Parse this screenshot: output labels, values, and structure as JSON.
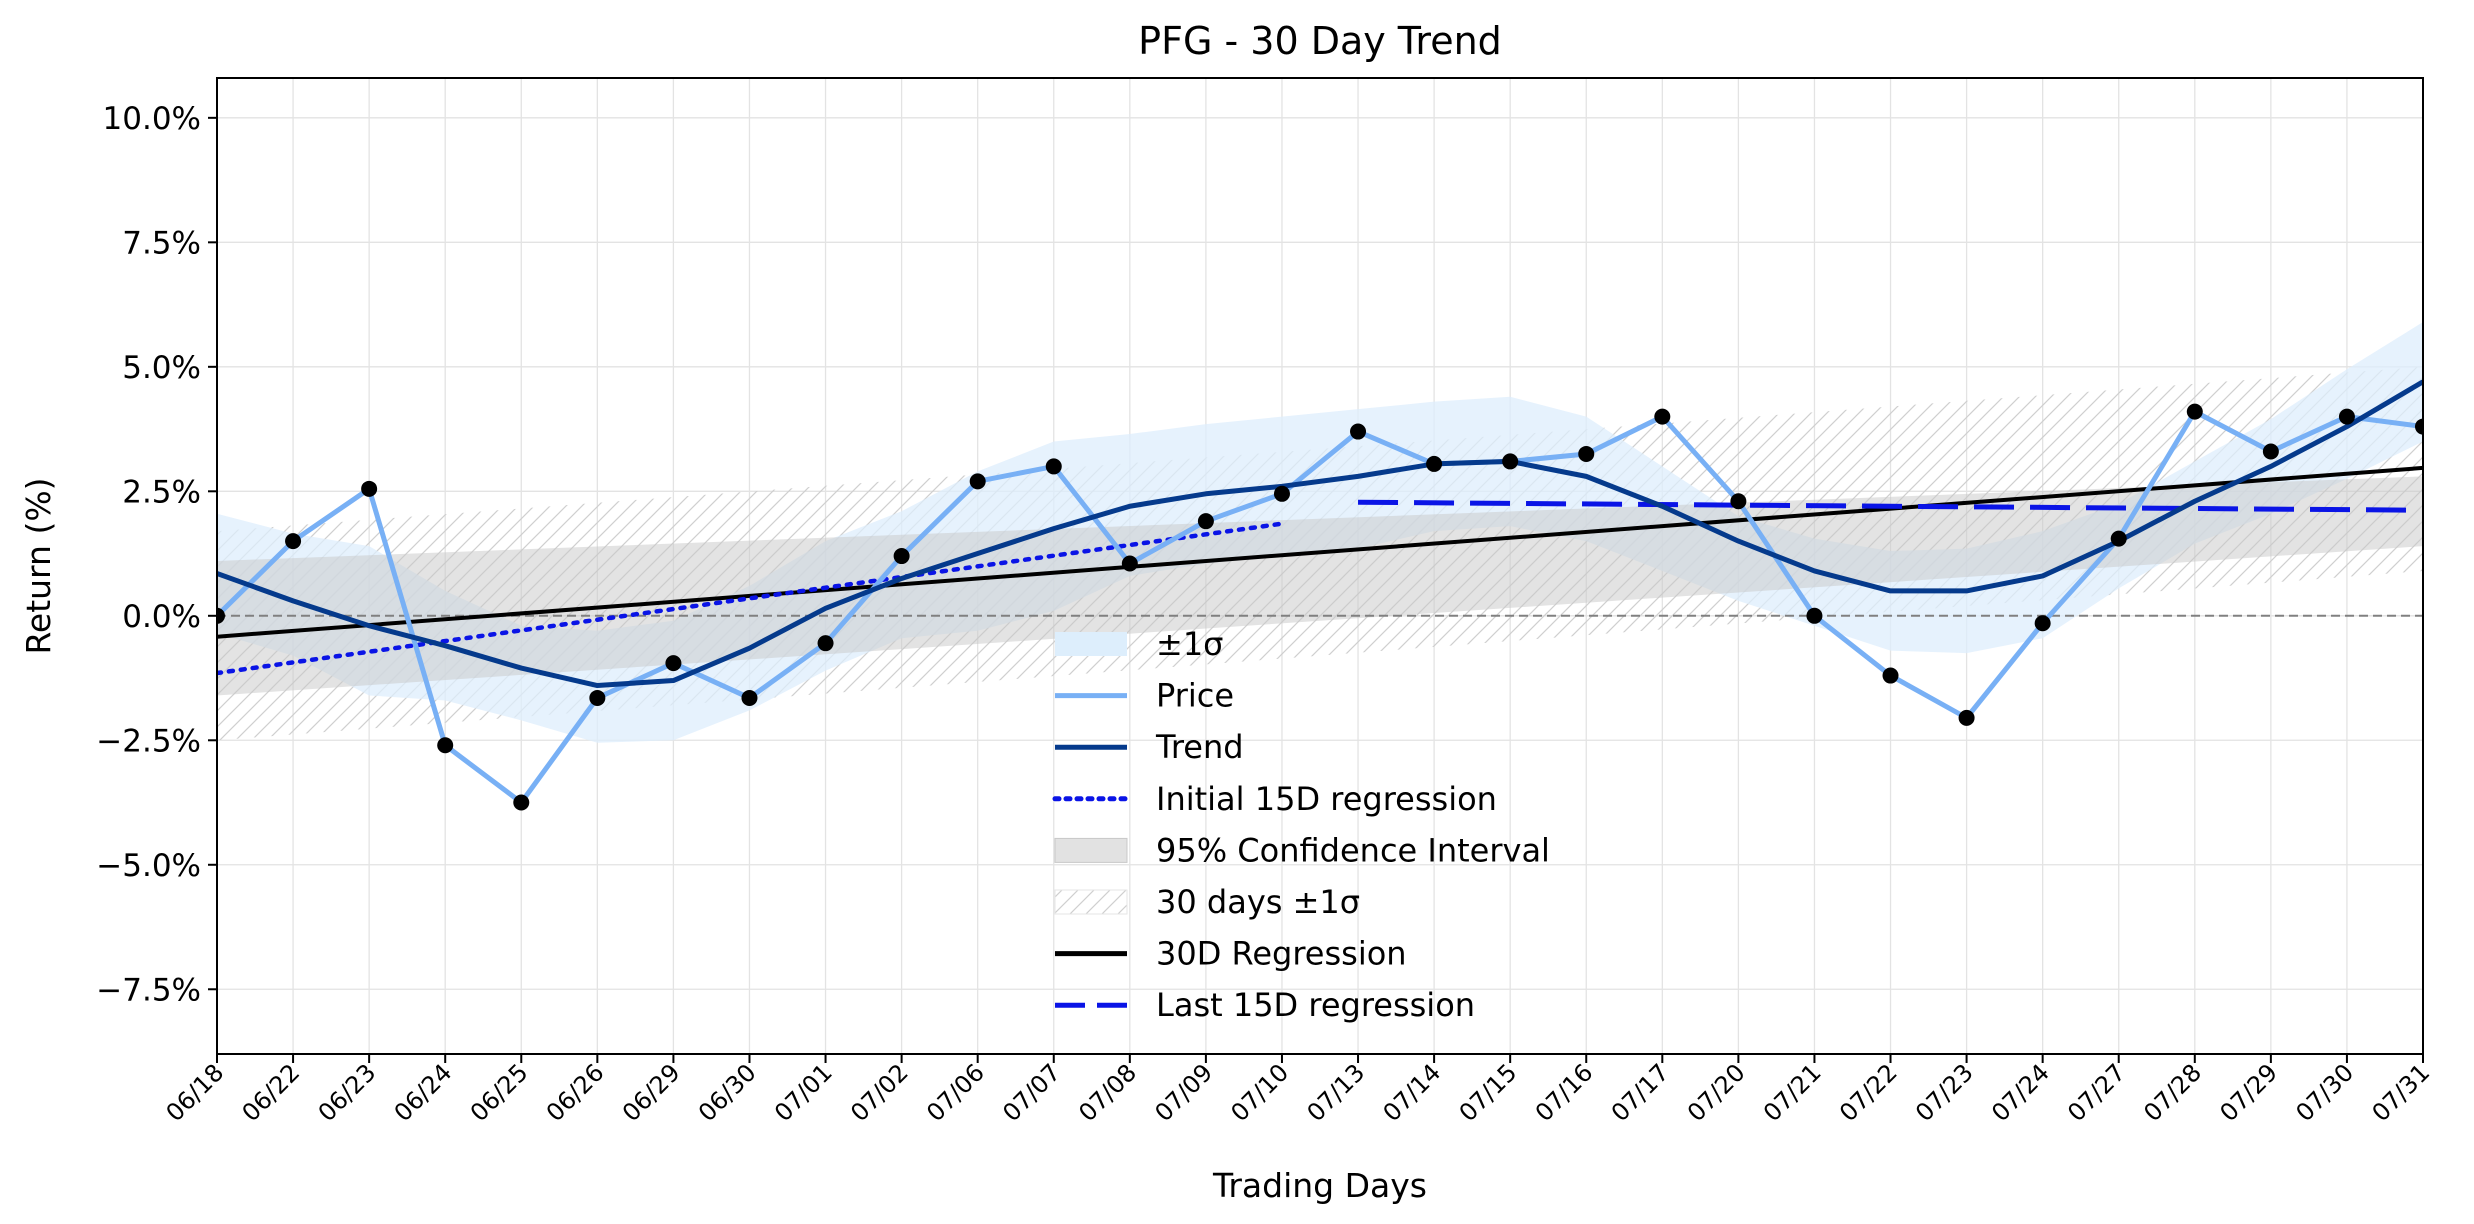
{
  "chart_data": {
    "type": "line",
    "title": "PFG - 30 Day Trend",
    "xlabel": "Trading Days",
    "ylabel": "Return (%)",
    "ylim": [
      -8.8,
      10.8
    ],
    "y_ticks": [
      -7.5,
      -5.0,
      -2.5,
      0.0,
      2.5,
      5.0,
      7.5,
      10.0
    ],
    "y_tick_labels": [
      "−7.5%",
      "−5.0%",
      "−2.5%",
      "0.0%",
      "2.5%",
      "5.0%",
      "7.5%",
      "10.0%"
    ],
    "categories": [
      "06/18",
      "06/22",
      "06/23",
      "06/24",
      "06/25",
      "06/26",
      "06/29",
      "06/30",
      "07/01",
      "07/02",
      "07/06",
      "07/07",
      "07/08",
      "07/09",
      "07/10",
      "07/13",
      "07/14",
      "07/15",
      "07/16",
      "07/17",
      "07/20",
      "07/21",
      "07/22",
      "07/23",
      "07/24",
      "07/27",
      "07/28",
      "07/29",
      "07/30",
      "07/31"
    ],
    "grid": true,
    "legend_position": "lower-center",
    "zero_line": true,
    "series": [
      {
        "name": "Price",
        "color": "#78b0f5",
        "values": [
          0.0,
          1.5,
          2.55,
          -2.6,
          -3.75,
          -1.65,
          -0.95,
          -1.65,
          -0.55,
          1.2,
          2.7,
          3.0,
          1.05,
          1.9,
          2.45,
          3.7,
          3.05,
          3.1,
          3.25,
          4.0,
          2.3,
          0.0,
          -1.2,
          -2.05,
          -0.15,
          1.55,
          4.1,
          3.3,
          4.0,
          3.8
        ]
      },
      {
        "name": "Trend",
        "color": "#053a8c",
        "values": [
          0.85,
          0.3,
          -0.2,
          -0.6,
          -1.05,
          -1.4,
          -1.3,
          -0.65,
          0.15,
          0.75,
          1.25,
          1.75,
          2.2,
          2.45,
          2.6,
          2.8,
          3.05,
          3.1,
          2.8,
          2.2,
          1.5,
          0.9,
          0.5,
          0.5,
          0.8,
          1.5,
          2.3,
          3.0,
          3.8,
          4.7
        ]
      },
      {
        "name": "±1σ",
        "color": "#ddeefc",
        "upper": [
          2.05,
          1.65,
          1.4,
          0.5,
          -0.2,
          -0.3,
          -0.1,
          0.6,
          1.5,
          2.1,
          2.9,
          3.5,
          3.65,
          3.85,
          4.0,
          4.15,
          4.3,
          4.4,
          4.0,
          3.0,
          2.0,
          1.55,
          1.3,
          1.35,
          1.7,
          2.25,
          3.1,
          3.95,
          4.95,
          5.9
        ],
        "lower": [
          -0.35,
          -0.8,
          -1.6,
          -1.7,
          -2.1,
          -2.55,
          -2.5,
          -1.9,
          -1.1,
          -0.45,
          -0.3,
          0.1,
          0.8,
          1.05,
          1.2,
          1.35,
          1.7,
          1.8,
          1.5,
          0.9,
          0.3,
          -0.2,
          -0.7,
          -0.75,
          -0.45,
          0.55,
          1.45,
          2.05,
          2.75,
          3.5
        ]
      },
      {
        "name": "Initial 15D regression",
        "color": "#0a14e6",
        "x_range": [
          "06/18",
          "07/10"
        ],
        "start": -1.15,
        "end": 1.85
      },
      {
        "name": "95% Confidence Interval",
        "color": "#e2e2e2",
        "upper": [
          1.1,
          2.8
        ],
        "lower": [
          -1.6,
          1.4
        ]
      },
      {
        "name": "30 days ±1σ",
        "color": "#d8d8d8",
        "upper": [
          1.7,
          5.0
        ],
        "lower": [
          -2.5,
          0.9
        ]
      },
      {
        "name": "30D Regression",
        "color": "#000000",
        "start": -0.42,
        "end": 2.97
      },
      {
        "name": "Last 15D regression",
        "color": "#0a14e6",
        "x_range": [
          "07/13",
          "07/31"
        ],
        "start": 2.28,
        "end": 2.12
      }
    ]
  }
}
